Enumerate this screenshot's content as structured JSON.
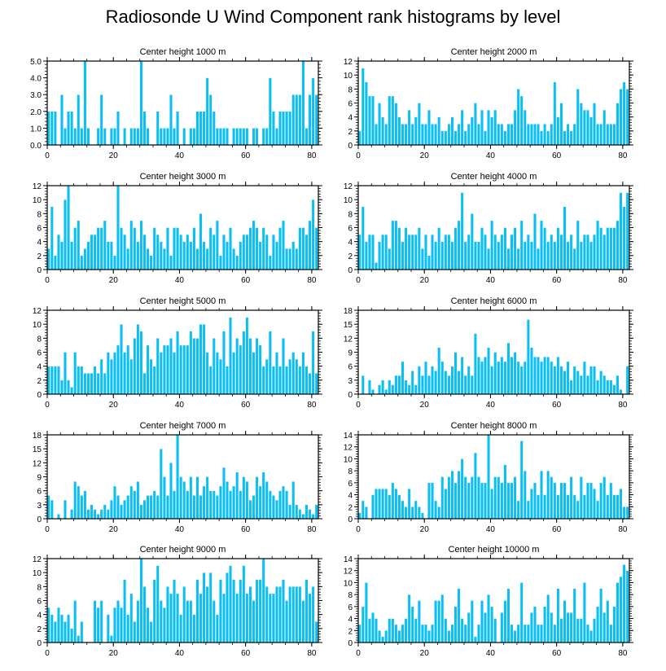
{
  "title": "Radiosonde U Wind Component rank histograms by level",
  "colors": {
    "bar": "#0BBFF5",
    "bar_edge": "#ffffff",
    "axis": "#000000"
  },
  "chart_data": [
    {
      "type": "bar",
      "title": "Center height 1000 m",
      "xlim": [
        0,
        82
      ],
      "ylim": [
        0,
        5
      ],
      "xticks": [
        0,
        20,
        40,
        60,
        80
      ],
      "yticks": [
        0,
        1,
        2,
        3,
        4,
        5
      ],
      "ytick_labels": [
        "0.0",
        "1.0",
        "2.0",
        "3.0",
        "4.0",
        "5.0"
      ],
      "values": [
        2,
        2,
        2,
        0,
        3,
        1,
        2,
        2,
        1,
        3,
        1,
        5,
        1,
        0,
        0,
        1,
        3,
        1,
        0,
        1,
        1,
        2,
        0,
        1,
        0,
        1,
        1,
        1,
        5,
        2,
        1,
        0,
        0,
        2,
        1,
        1,
        1,
        3,
        1,
        2,
        0,
        1,
        0,
        1,
        1,
        2,
        2,
        2,
        4,
        3,
        2,
        1,
        1,
        1,
        1,
        0,
        1,
        1,
        1,
        1,
        1,
        0,
        1,
        1,
        0,
        1,
        1,
        4,
        2,
        1,
        2,
        2,
        2,
        2,
        3,
        3,
        3,
        5,
        1,
        3,
        4,
        3
      ]
    },
    {
      "type": "bar",
      "title": "Center height 2000 m",
      "xlim": [
        0,
        82
      ],
      "ylim": [
        0,
        12
      ],
      "xticks": [
        0,
        20,
        40,
        60,
        80
      ],
      "yticks": [
        0,
        2,
        4,
        6,
        8,
        10,
        12
      ],
      "ytick_labels": [
        "0",
        "2",
        "4",
        "6",
        "8",
        "10",
        "12"
      ],
      "values": [
        2,
        11,
        9,
        7,
        7,
        3,
        6,
        4,
        3,
        7,
        7,
        6,
        4,
        3,
        3,
        5,
        3,
        4,
        6,
        3,
        3,
        5,
        3,
        3,
        4,
        2,
        2,
        3,
        4,
        2,
        3,
        5,
        2,
        3,
        4,
        6,
        3,
        5,
        2,
        5,
        4,
        5,
        3,
        3,
        2,
        3,
        3,
        5,
        8,
        7,
        5,
        3,
        3,
        3,
        3,
        2,
        3,
        2,
        3,
        9,
        4,
        6,
        2,
        3,
        2,
        3,
        8,
        6,
        5,
        5,
        4,
        6,
        3,
        3,
        5,
        3,
        3,
        3,
        6,
        8,
        9,
        8
      ]
    },
    {
      "type": "bar",
      "title": "Center height 3000 m",
      "xlim": [
        0,
        82
      ],
      "ylim": [
        0,
        12
      ],
      "xticks": [
        0,
        20,
        40,
        60,
        80
      ],
      "yticks": [
        0,
        2,
        4,
        6,
        8,
        10,
        12
      ],
      "ytick_labels": [
        "0",
        "2",
        "4",
        "6",
        "8",
        "10",
        "12"
      ],
      "values": [
        3,
        9,
        2,
        5,
        4,
        10,
        12,
        4,
        6,
        7,
        2,
        3,
        4,
        5,
        5,
        6,
        6,
        7,
        4,
        4,
        2,
        12,
        6,
        5,
        3,
        7,
        6,
        4,
        7,
        5,
        3,
        2,
        6,
        5,
        4,
        3,
        6,
        2,
        6,
        6,
        5,
        4,
        5,
        4,
        6,
        3,
        8,
        4,
        3,
        6,
        5,
        7,
        2,
        5,
        4,
        6,
        3,
        2,
        4,
        5,
        5,
        6,
        7,
        6,
        4,
        6,
        5,
        2,
        5,
        4,
        6,
        7,
        3,
        3,
        4,
        3,
        6,
        6,
        5,
        7,
        10,
        6
      ]
    },
    {
      "type": "bar",
      "title": "Center height 4000 m",
      "xlim": [
        0,
        82
      ],
      "ylim": [
        0,
        12
      ],
      "xticks": [
        0,
        20,
        40,
        60,
        80
      ],
      "yticks": [
        0,
        2,
        4,
        6,
        8,
        10,
        12
      ],
      "ytick_labels": [
        "0",
        "2",
        "4",
        "6",
        "8",
        "10",
        "12"
      ],
      "values": [
        5,
        9,
        4,
        5,
        5,
        1,
        4,
        5,
        5,
        3,
        7,
        7,
        6,
        4,
        6,
        5,
        5,
        5,
        6,
        3,
        5,
        2,
        5,
        4,
        6,
        4,
        5,
        5,
        4,
        6,
        7,
        11,
        4,
        5,
        8,
        4,
        4,
        6,
        5,
        3,
        7,
        5,
        4,
        5,
        6,
        3,
        5,
        6,
        3,
        7,
        4,
        5,
        4,
        8,
        3,
        7,
        6,
        4,
        5,
        4,
        6,
        5,
        9,
        4,
        5,
        3,
        7,
        4,
        5,
        5,
        4,
        5,
        7,
        6,
        5,
        6,
        6,
        6,
        7,
        11,
        9,
        11
      ]
    },
    {
      "type": "bar",
      "title": "Center height 5000 m",
      "xlim": [
        0,
        82
      ],
      "ylim": [
        0,
        12
      ],
      "xticks": [
        0,
        20,
        40,
        60,
        80
      ],
      "yticks": [
        0,
        2,
        4,
        6,
        8,
        10,
        12
      ],
      "ytick_labels": [
        "0",
        "2",
        "4",
        "6",
        "8",
        "10",
        "12"
      ],
      "values": [
        4,
        4,
        4,
        4,
        2,
        6,
        2,
        1,
        6,
        4,
        4,
        3,
        3,
        3,
        4,
        3,
        5,
        3,
        6,
        5,
        6,
        7,
        10,
        6,
        7,
        5,
        8,
        10,
        9,
        3,
        7,
        5,
        4,
        8,
        6,
        7,
        7,
        8,
        6,
        9,
        7,
        7,
        7,
        9,
        8,
        8,
        10,
        10,
        6,
        4,
        8,
        6,
        5,
        9,
        4,
        11,
        6,
        8,
        7,
        9,
        11,
        8,
        6,
        8,
        7,
        4,
        5,
        9,
        4,
        6,
        4,
        8,
        4,
        5,
        6,
        5,
        4,
        6,
        4,
        3,
        9,
        3
      ]
    },
    {
      "type": "bar",
      "title": "Center height 6000 m",
      "xlim": [
        0,
        82
      ],
      "ylim": [
        0,
        18
      ],
      "xticks": [
        0,
        20,
        40,
        60,
        80
      ],
      "yticks": [
        0,
        3,
        6,
        9,
        12,
        15,
        18
      ],
      "ytick_labels": [
        "0",
        "3",
        "6",
        "9",
        "12",
        "15",
        "18"
      ],
      "values": [
        0,
        4,
        0,
        3,
        1,
        0,
        2,
        3,
        1,
        3,
        2,
        4,
        4,
        7,
        3,
        2,
        5,
        2,
        6,
        4,
        7,
        4,
        6,
        5,
        10,
        7,
        5,
        4,
        6,
        9,
        5,
        8,
        4,
        6,
        4,
        13,
        8,
        7,
        8,
        10,
        6,
        9,
        7,
        8,
        7,
        11,
        8,
        9,
        7,
        6,
        7,
        16,
        10,
        8,
        8,
        7,
        8,
        8,
        7,
        6,
        8,
        6,
        5,
        7,
        3,
        6,
        5,
        4,
        7,
        4,
        6,
        6,
        3,
        5,
        4,
        3,
        3,
        2,
        4,
        1,
        0,
        6
      ]
    },
    {
      "type": "bar",
      "title": "Center height 7000 m",
      "xlim": [
        0,
        82
      ],
      "ylim": [
        0,
        18
      ],
      "xticks": [
        0,
        20,
        40,
        60,
        80
      ],
      "yticks": [
        0,
        3,
        6,
        9,
        12,
        15,
        18
      ],
      "ytick_labels": [
        "0",
        "3",
        "6",
        "9",
        "12",
        "15",
        "18"
      ],
      "values": [
        5,
        4,
        0,
        1,
        0,
        4,
        0,
        2,
        8,
        7,
        5,
        6,
        2,
        3,
        2,
        1,
        2,
        3,
        2,
        4,
        7,
        5,
        3,
        4,
        5,
        7,
        6,
        8,
        3,
        4,
        5,
        5,
        6,
        5,
        15,
        9,
        5,
        12,
        6,
        18,
        9,
        8,
        6,
        9,
        5,
        9,
        5,
        7,
        9,
        6,
        6,
        5,
        7,
        11,
        8,
        6,
        7,
        10,
        6,
        9,
        8,
        4,
        5,
        9,
        7,
        10,
        8,
        6,
        5,
        4,
        6,
        7,
        6,
        3,
        8,
        3,
        2,
        1,
        3,
        2,
        1,
        3
      ]
    },
    {
      "type": "bar",
      "title": "Center height 8000 m",
      "xlim": [
        0,
        82
      ],
      "ylim": [
        0,
        14
      ],
      "xticks": [
        0,
        20,
        40,
        60,
        80
      ],
      "yticks": [
        0,
        2,
        4,
        6,
        8,
        10,
        12,
        14
      ],
      "ytick_labels": [
        "0",
        "2",
        "4",
        "6",
        "8",
        "10",
        "12",
        "14"
      ],
      "values": [
        1,
        3,
        2,
        0,
        4,
        5,
        5,
        5,
        5,
        4,
        6,
        5,
        4,
        3,
        2,
        5,
        2,
        3,
        2,
        1,
        0,
        6,
        6,
        3,
        2,
        7,
        5,
        7,
        8,
        6,
        8,
        10,
        7,
        6,
        7,
        11,
        7,
        6,
        6,
        14,
        5,
        7,
        7,
        6,
        9,
        6,
        6,
        7,
        3,
        13,
        8,
        3,
        5,
        6,
        4,
        8,
        4,
        8,
        7,
        6,
        4,
        6,
        6,
        4,
        7,
        4,
        3,
        7,
        4,
        6,
        6,
        5,
        3,
        6,
        7,
        4,
        6,
        4,
        4,
        5,
        2,
        2
      ]
    },
    {
      "type": "bar",
      "title": "Center height 9000 m",
      "xlim": [
        0,
        82
      ],
      "ylim": [
        0,
        12
      ],
      "xticks": [
        0,
        20,
        40,
        60,
        80
      ],
      "yticks": [
        0,
        2,
        4,
        6,
        8,
        10,
        12
      ],
      "ytick_labels": [
        "0",
        "2",
        "4",
        "6",
        "8",
        "10",
        "12"
      ],
      "values": [
        5,
        4,
        3,
        5,
        4,
        3,
        4,
        2,
        6,
        1,
        3,
        0,
        0,
        0,
        6,
        5,
        6,
        0,
        4,
        1,
        5,
        6,
        5,
        9,
        4,
        7,
        3,
        6,
        12,
        8,
        5,
        3,
        9,
        11,
        6,
        5,
        8,
        7,
        9,
        7,
        4,
        8,
        6,
        6,
        4,
        9,
        7,
        10,
        8,
        10,
        6,
        4,
        9,
        7,
        10,
        11,
        9,
        7,
        9,
        11,
        7,
        8,
        6,
        9,
        9,
        12,
        8,
        7,
        7,
        8,
        8,
        9,
        6,
        8,
        8,
        8,
        8,
        6,
        9,
        7,
        8,
        3
      ]
    },
    {
      "type": "bar",
      "title": "Center height 10000 m",
      "xlim": [
        0,
        82
      ],
      "ylim": [
        0,
        14
      ],
      "xticks": [
        0,
        20,
        40,
        60,
        80
      ],
      "yticks": [
        0,
        2,
        4,
        6,
        8,
        10,
        12,
        14
      ],
      "ytick_labels": [
        "0",
        "2",
        "4",
        "6",
        "8",
        "10",
        "12",
        "14"
      ],
      "values": [
        3,
        6,
        10,
        4,
        5,
        4,
        2,
        1,
        2,
        4,
        4,
        3,
        2,
        3,
        4,
        8,
        6,
        4,
        7,
        3,
        3,
        2,
        3,
        7,
        7,
        8,
        4,
        2,
        3,
        6,
        9,
        4,
        3,
        5,
        7,
        1,
        3,
        7,
        5,
        8,
        6,
        4,
        0,
        5,
        7,
        9,
        3,
        2,
        3,
        10,
        3,
        3,
        5,
        6,
        3,
        3,
        6,
        8,
        5,
        3,
        9,
        4,
        7,
        5,
        5,
        9,
        4,
        4,
        10,
        3,
        2,
        4,
        6,
        9,
        5,
        7,
        3,
        6,
        10,
        11,
        13,
        12
      ]
    }
  ]
}
